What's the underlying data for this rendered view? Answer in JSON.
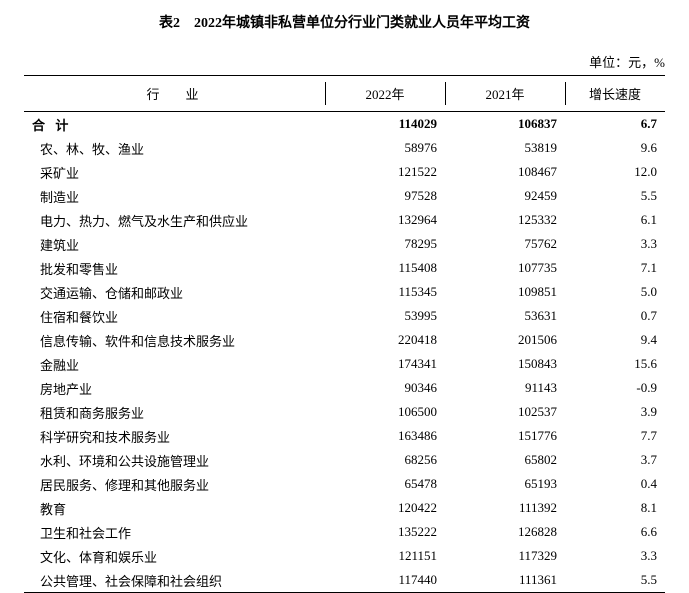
{
  "title": "表2　2022年城镇非私营单位分行业门类就业人员年平均工资",
  "unit": "单位：元，%",
  "columns": {
    "industry": "行业",
    "y2022": "2022年",
    "y2021": "2021年",
    "growth": "增长速度"
  },
  "total": {
    "label": "合计",
    "y2022": "114029",
    "y2021": "106837",
    "growth": "6.7"
  },
  "rows": [
    {
      "industry": "农、林、牧、渔业",
      "y2022": "58976",
      "y2021": "53819",
      "growth": "9.6"
    },
    {
      "industry": "采矿业",
      "y2022": "121522",
      "y2021": "108467",
      "growth": "12.0"
    },
    {
      "industry": "制造业",
      "y2022": "97528",
      "y2021": "92459",
      "growth": "5.5"
    },
    {
      "industry": "电力、热力、燃气及水生产和供应业",
      "y2022": "132964",
      "y2021": "125332",
      "growth": "6.1"
    },
    {
      "industry": "建筑业",
      "y2022": "78295",
      "y2021": "75762",
      "growth": "3.3"
    },
    {
      "industry": "批发和零售业",
      "y2022": "115408",
      "y2021": "107735",
      "growth": "7.1"
    },
    {
      "industry": "交通运输、仓储和邮政业",
      "y2022": "115345",
      "y2021": "109851",
      "growth": "5.0"
    },
    {
      "industry": "住宿和餐饮业",
      "y2022": "53995",
      "y2021": "53631",
      "growth": "0.7"
    },
    {
      "industry": "信息传输、软件和信息技术服务业",
      "y2022": "220418",
      "y2021": "201506",
      "growth": "9.4"
    },
    {
      "industry": "金融业",
      "y2022": "174341",
      "y2021": "150843",
      "growth": "15.6"
    },
    {
      "industry": "房地产业",
      "y2022": "90346",
      "y2021": "91143",
      "growth": "-0.9"
    },
    {
      "industry": "租赁和商务服务业",
      "y2022": "106500",
      "y2021": "102537",
      "growth": "3.9"
    },
    {
      "industry": "科学研究和技术服务业",
      "y2022": "163486",
      "y2021": "151776",
      "growth": "7.7"
    },
    {
      "industry": "水利、环境和公共设施管理业",
      "y2022": "68256",
      "y2021": "65802",
      "growth": "3.7"
    },
    {
      "industry": "居民服务、修理和其他服务业",
      "y2022": "65478",
      "y2021": "65193",
      "growth": "0.4"
    },
    {
      "industry": "教育",
      "y2022": "120422",
      "y2021": "111392",
      "growth": "8.1"
    },
    {
      "industry": "卫生和社会工作",
      "y2022": "135222",
      "y2021": "126828",
      "growth": "6.6"
    },
    {
      "industry": "文化、体育和娱乐业",
      "y2022": "121151",
      "y2021": "117329",
      "growth": "3.3"
    },
    {
      "industry": "公共管理、社会保障和社会组织",
      "y2022": "117440",
      "y2021": "111361",
      "growth": "5.5"
    }
  ],
  "style": {
    "background_color": "#ffffff",
    "text_color": "#000000",
    "border_color": "#000000",
    "title_fontsize": 14,
    "body_fontsize": 13,
    "font_family": "SimSun"
  }
}
